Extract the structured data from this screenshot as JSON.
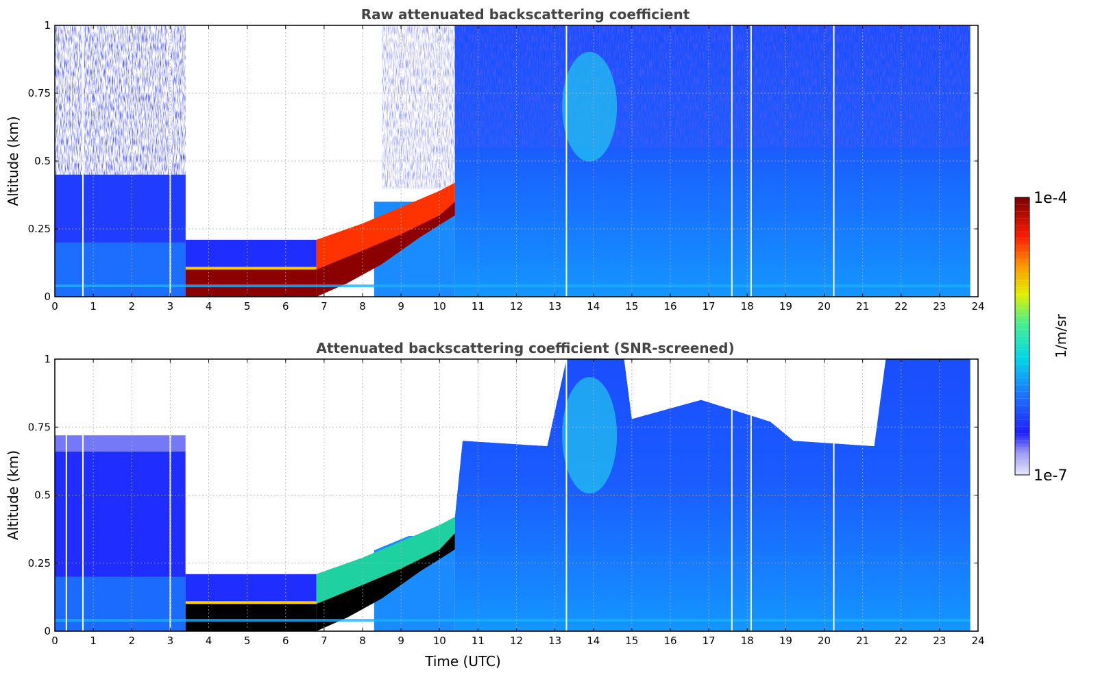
{
  "chart_data": [
    {
      "type": "heatmap",
      "panel": "raw",
      "title": "Raw attenuated backscattering coefficient",
      "xlabel": "",
      "ylabel": "Altitude (km)",
      "xlim": [
        0,
        24
      ],
      "ylim": [
        0,
        1
      ],
      "xticks": [
        "0",
        "1",
        "2",
        "3",
        "4",
        "5",
        "6",
        "7",
        "8",
        "9",
        "10",
        "11",
        "12",
        "13",
        "14",
        "15",
        "16",
        "17",
        "18",
        "19",
        "20",
        "21",
        "22",
        "23",
        "24"
      ],
      "yticks": [
        "0",
        "0.25",
        "0.5",
        "0.75",
        "1"
      ],
      "grid": true,
      "regions": [
        {
          "name": "noisy-background",
          "x": [
            0,
            3.4
          ],
          "y": [
            0.45,
            1
          ]
        },
        {
          "name": "boundary-layer",
          "x": [
            0,
            3.4
          ],
          "y": [
            0,
            0.45
          ]
        },
        {
          "name": "fog-layer-top",
          "x": [
            3.4,
            6.8
          ],
          "y": [
            0.1,
            0.21
          ]
        },
        {
          "name": "fog-core",
          "x": [
            3.4,
            6.8
          ],
          "y": [
            0,
            0.1
          ]
        },
        {
          "name": "rising-cloud",
          "x": [
            6.8,
            10.4
          ],
          "y": [
            0,
            0.42
          ]
        },
        {
          "name": "daytime-mixed-layer",
          "x": [
            10.4,
            23.8
          ],
          "y": [
            0,
            1
          ]
        }
      ],
      "missing_data_times": [
        0.73,
        3.0,
        13.3,
        17.6,
        18.1,
        20.25
      ]
    },
    {
      "type": "heatmap",
      "panel": "screened",
      "title": "Attenuated backscattering coefficient (SNR-screened)",
      "xlabel": "Time (UTC)",
      "ylabel": "Altitude (km)",
      "xlim": [
        0,
        24
      ],
      "ylim": [
        0,
        1
      ],
      "xticks": [
        "0",
        "1",
        "2",
        "3",
        "4",
        "5",
        "6",
        "7",
        "8",
        "9",
        "10",
        "11",
        "12",
        "13",
        "14",
        "15",
        "16",
        "17",
        "18",
        "19",
        "20",
        "21",
        "22",
        "23",
        "24"
      ],
      "yticks": [
        "0",
        "0.25",
        "0.5",
        "0.75",
        "1"
      ],
      "grid": true,
      "mask_top_km": [
        {
          "x": 0,
          "y": 0.72
        },
        {
          "x": 3.4,
          "y": 0.72
        },
        {
          "x": 3.4,
          "y": 0.21
        },
        {
          "x": 6.8,
          "y": 0.21
        },
        {
          "x": 10.4,
          "y": 0.42
        },
        {
          "x": 10.6,
          "y": 0.7
        },
        {
          "x": 12.8,
          "y": 0.68
        },
        {
          "x": 13.3,
          "y": 1.0
        },
        {
          "x": 14.8,
          "y": 1.0
        },
        {
          "x": 15.0,
          "y": 0.78
        },
        {
          "x": 16.8,
          "y": 0.85
        },
        {
          "x": 18.6,
          "y": 0.77
        },
        {
          "x": 19.2,
          "y": 0.7
        },
        {
          "x": 21.3,
          "y": 0.68
        },
        {
          "x": 21.6,
          "y": 1.0
        },
        {
          "x": 23.8,
          "y": 1.0
        }
      ],
      "missing_data_times": [
        0.3,
        0.73,
        3.0,
        13.3,
        17.6,
        18.1,
        20.25
      ]
    }
  ],
  "colorbar": {
    "label": "1/m/sr",
    "max_label": "1e-4",
    "min_label": "1e-7",
    "colors": [
      "#e6e6fa",
      "#1f1fff",
      "#1a8cff",
      "#00e6e6",
      "#66ff66",
      "#ffff00",
      "#ff8000",
      "#ff0000",
      "#8b0000"
    ]
  }
}
